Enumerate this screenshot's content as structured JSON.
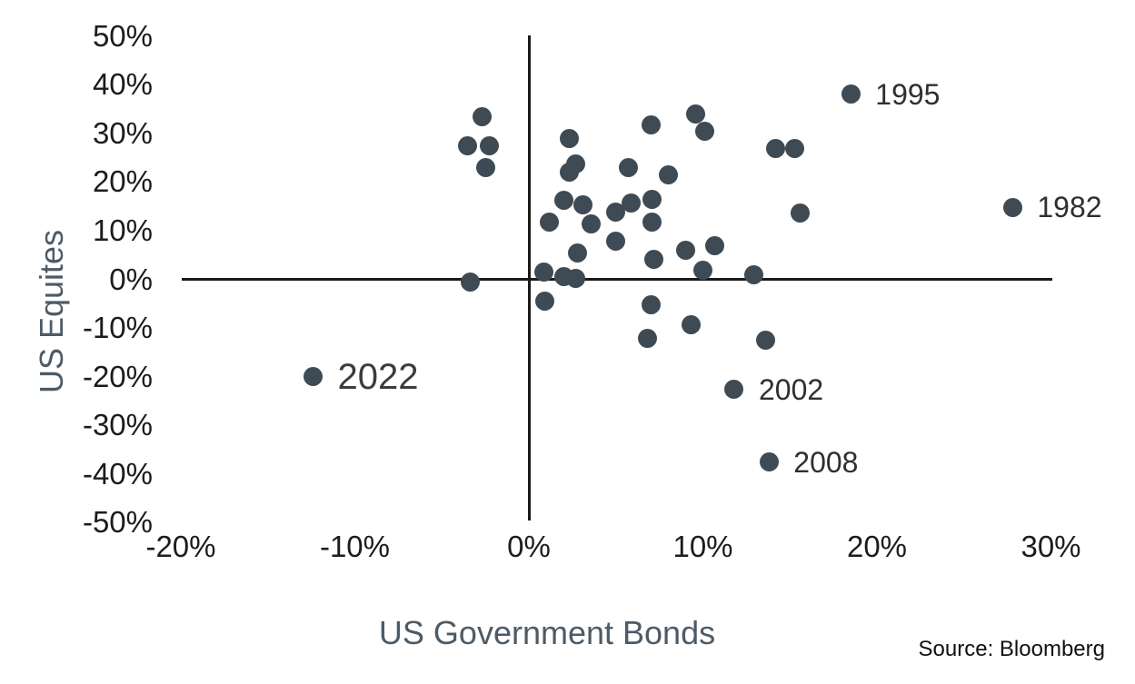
{
  "chart_data": {
    "type": "scatter",
    "title": "",
    "x_axis": {
      "title": "US Government Bonds",
      "range": [
        -20,
        30
      ],
      "ticks": [
        {
          "v": -20,
          "label": "-20%"
        },
        {
          "v": -10,
          "label": "-10%"
        },
        {
          "v": 0,
          "label": "0%"
        },
        {
          "v": 10,
          "label": "10%"
        },
        {
          "v": 20,
          "label": "20%"
        },
        {
          "v": 30,
          "label": "30%"
        }
      ]
    },
    "y_axis": {
      "title": "US Equites",
      "range": [
        -50,
        50
      ],
      "ticks": [
        {
          "v": 50,
          "label": "50%"
        },
        {
          "v": 40,
          "label": "40%"
        },
        {
          "v": 30,
          "label": "30%"
        },
        {
          "v": 20,
          "label": "20%"
        },
        {
          "v": 10,
          "label": "10%"
        },
        {
          "v": 0,
          "label": "0%"
        },
        {
          "v": -10,
          "label": "-10%"
        },
        {
          "v": -20,
          "label": "-20%"
        },
        {
          "v": -30,
          "label": "-30%"
        },
        {
          "v": -40,
          "label": "-40%"
        },
        {
          "v": -50,
          "label": "-50%"
        }
      ]
    },
    "grid": false,
    "legend": false,
    "dot_color": "#3e4a54",
    "source": "Source: Bloomberg",
    "points": [
      {
        "x": -2.7,
        "y": 33.5
      },
      {
        "x": -3.55,
        "y": 27.5
      },
      {
        "x": -2.25,
        "y": 27.5
      },
      {
        "x": -2.5,
        "y": 23
      },
      {
        "x": -3.35,
        "y": -0.5
      },
      {
        "x": 2.3,
        "y": 29
      },
      {
        "x": 7.0,
        "y": 31.8
      },
      {
        "x": 9.6,
        "y": 34
      },
      {
        "x": 10.1,
        "y": 30.5
      },
      {
        "x": 14.2,
        "y": 26.8
      },
      {
        "x": 15.3,
        "y": 26.8
      },
      {
        "x": 2.7,
        "y": 23.8
      },
      {
        "x": 2.3,
        "y": 22
      },
      {
        "x": 5.7,
        "y": 23
      },
      {
        "x": 8.0,
        "y": 21.5
      },
      {
        "x": 2.0,
        "y": 16.3
      },
      {
        "x": 3.1,
        "y": 15.4
      },
      {
        "x": 5.9,
        "y": 15.7
      },
      {
        "x": 7.1,
        "y": 16.5
      },
      {
        "x": 5.0,
        "y": 13.8
      },
      {
        "x": 15.6,
        "y": 13.7
      },
      {
        "x": 1.2,
        "y": 11.8
      },
      {
        "x": 3.6,
        "y": 11.3
      },
      {
        "x": 7.1,
        "y": 11.7
      },
      {
        "x": 5.0,
        "y": 7.8
      },
      {
        "x": 9.0,
        "y": 6.0
      },
      {
        "x": 10.7,
        "y": 7.0
      },
      {
        "x": 2.8,
        "y": 5.5
      },
      {
        "x": 7.2,
        "y": 4.1
      },
      {
        "x": 10.0,
        "y": 1.9
      },
      {
        "x": 12.9,
        "y": 1.0
      },
      {
        "x": 0.85,
        "y": 1.5
      },
      {
        "x": 2.0,
        "y": 0.5
      },
      {
        "x": 2.7,
        "y": 0.1
      },
      {
        "x": 0.9,
        "y": -4.4
      },
      {
        "x": 7.0,
        "y": -5.3
      },
      {
        "x": 9.3,
        "y": -9.4
      },
      {
        "x": 6.8,
        "y": -12.2
      },
      {
        "x": 13.6,
        "y": -12.5
      },
      {
        "x": 18.5,
        "y": 38,
        "label": "1995"
      },
      {
        "x": 27.8,
        "y": 14.8,
        "label": "1982"
      },
      {
        "x": 11.8,
        "y": -22.6,
        "label": "2002"
      },
      {
        "x": 13.8,
        "y": -37.6,
        "label": "2008"
      },
      {
        "x": -12.4,
        "y": -20,
        "label": "2022",
        "big": true
      }
    ]
  }
}
